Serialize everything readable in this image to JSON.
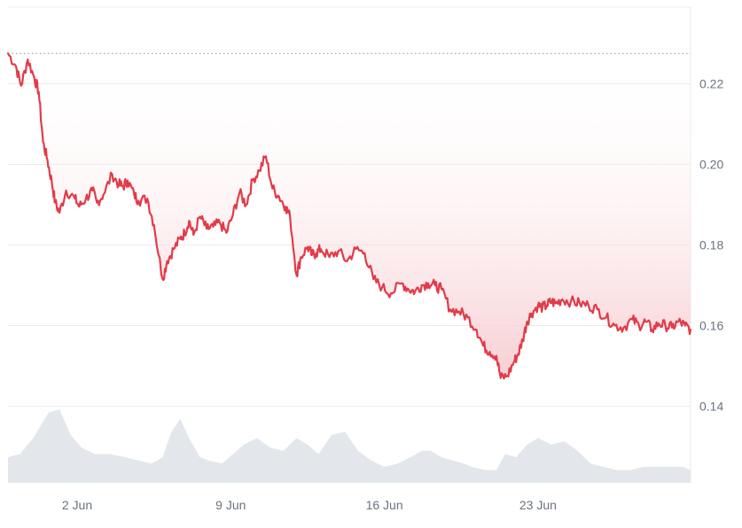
{
  "chart_data": {
    "type": "area",
    "title": "",
    "xlabel": "",
    "ylabel": "",
    "x_tick_labels": [
      "2 Jun",
      "9 Jun",
      "16 Jun",
      "23 Jun"
    ],
    "y_tick_labels": [
      "0.14",
      "0.16",
      "0.18",
      "0.20",
      "0.22"
    ],
    "ylim": [
      0.121,
      0.239
    ],
    "xlim_days": [
      -2.15,
      28.95
    ],
    "x_tick_days": [
      1,
      8,
      15,
      22
    ],
    "reference_value": 0.2275,
    "grid": true,
    "colors": {
      "line": "#e23b4a",
      "fill": "#f6c9cd",
      "volume": "#e3e7ec",
      "grid": "#e9ebef",
      "reference": "#9aa1ab"
    },
    "series": [
      {
        "values_x_days": [
          -2.15,
          -1.8,
          -1.55,
          -1.25,
          -0.95,
          -0.75,
          -0.55,
          -0.35,
          -0.15,
          0.0,
          0.2,
          0.5,
          0.9,
          1.1,
          1.4,
          1.7,
          1.9,
          2.2,
          2.6,
          2.9,
          3.1,
          3.3,
          3.6,
          3.8,
          4.2,
          4.5,
          4.9,
          5.1,
          5.4,
          5.7,
          5.9,
          6.1,
          6.3,
          6.6,
          6.9,
          7.2,
          7.5,
          7.8,
          8.1,
          8.4,
          8.7,
          9.0,
          9.3,
          9.6,
          9.9,
          10.2,
          10.5,
          10.7,
          11.0,
          11.2,
          11.5,
          11.7,
          11.9,
          12.1,
          12.5,
          12.9,
          13.3,
          13.7,
          14.1,
          14.5,
          14.9,
          15.3,
          15.8,
          16.1,
          16.4,
          16.7,
          17.0,
          17.3,
          17.6,
          18.0,
          18.4,
          18.8,
          19.2,
          19.5,
          19.8,
          20.1,
          20.3,
          20.6,
          20.9,
          21.1,
          21.3,
          21.5,
          21.7,
          22.0,
          22.2,
          22.4,
          22.6,
          22.8,
          23.1,
          23.5,
          23.9,
          24.3,
          24.7,
          25.1,
          25.5,
          25.9,
          26.3,
          26.6,
          26.9,
          27.2,
          27.5,
          27.8,
          28.1,
          28.4,
          28.7,
          28.95
        ],
        "values": [
          0.2275,
          0.2245,
          0.2195,
          0.226,
          0.2215,
          0.218,
          0.2055,
          0.201,
          0.1955,
          0.1905,
          0.188,
          0.1935,
          0.1915,
          0.1895,
          0.1915,
          0.1935,
          0.1905,
          0.1925,
          0.1975,
          0.195,
          0.1945,
          0.196,
          0.1925,
          0.191,
          0.1915,
          0.185,
          0.1715,
          0.176,
          0.179,
          0.1815,
          0.183,
          0.186,
          0.1825,
          0.187,
          0.184,
          0.1845,
          0.1855,
          0.183,
          0.1875,
          0.193,
          0.19,
          0.196,
          0.1985,
          0.202,
          0.194,
          0.192,
          0.1895,
          0.187,
          0.1725,
          0.177,
          0.1795,
          0.1775,
          0.178,
          0.179,
          0.177,
          0.1785,
          0.176,
          0.179,
          0.178,
          0.1715,
          0.1695,
          0.168,
          0.1705,
          0.169,
          0.1685,
          0.17,
          0.1705,
          0.17,
          0.169,
          0.164,
          0.1635,
          0.162,
          0.159,
          0.155,
          0.1535,
          0.1525,
          0.147,
          0.1475,
          0.151,
          0.153,
          0.1565,
          0.161,
          0.163,
          0.165,
          0.1645,
          0.165,
          0.166,
          0.1655,
          0.1665,
          0.166,
          0.1655,
          0.165,
          0.164,
          0.162,
          0.16,
          0.1595,
          0.1615,
          0.16,
          0.161,
          0.159,
          0.1605,
          0.16,
          0.1595,
          0.161,
          0.16,
          0.159
        ]
      }
    ],
    "volume": {
      "values_x_days": [
        -2.15,
        -1.6,
        -1.0,
        -0.3,
        0.2,
        0.7,
        1.2,
        1.8,
        2.5,
        3.2,
        3.8,
        4.4,
        4.9,
        5.3,
        5.7,
        6.1,
        6.6,
        7.0,
        7.6,
        8.1,
        8.6,
        9.2,
        9.8,
        10.4,
        11.0,
        11.5,
        12.0,
        12.6,
        13.2,
        13.8,
        14.4,
        15.0,
        15.6,
        16.2,
        16.7,
        17.1,
        17.6,
        18.1,
        18.6,
        19.0,
        19.6,
        20.1,
        20.5,
        21.0,
        21.5,
        22.0,
        22.6,
        23.2,
        23.8,
        24.4,
        25.0,
        25.6,
        26.2,
        26.8,
        27.4,
        28.0,
        28.6,
        28.95
      ],
      "values": [
        0.8,
        0.9,
        1.4,
        2.2,
        2.3,
        1.5,
        1.1,
        0.9,
        0.9,
        0.8,
        0.7,
        0.6,
        0.8,
        1.6,
        2.0,
        1.4,
        0.8,
        0.7,
        0.6,
        0.9,
        1.2,
        1.4,
        1.1,
        1.0,
        1.4,
        1.2,
        0.9,
        1.5,
        1.6,
        1.0,
        0.7,
        0.5,
        0.6,
        0.8,
        1.0,
        1.0,
        0.8,
        0.7,
        0.6,
        0.5,
        0.4,
        0.4,
        0.9,
        0.8,
        1.2,
        1.4,
        1.2,
        1.3,
        1.0,
        0.6,
        0.5,
        0.4,
        0.4,
        0.5,
        0.5,
        0.5,
        0.5,
        0.4
      ]
    }
  }
}
